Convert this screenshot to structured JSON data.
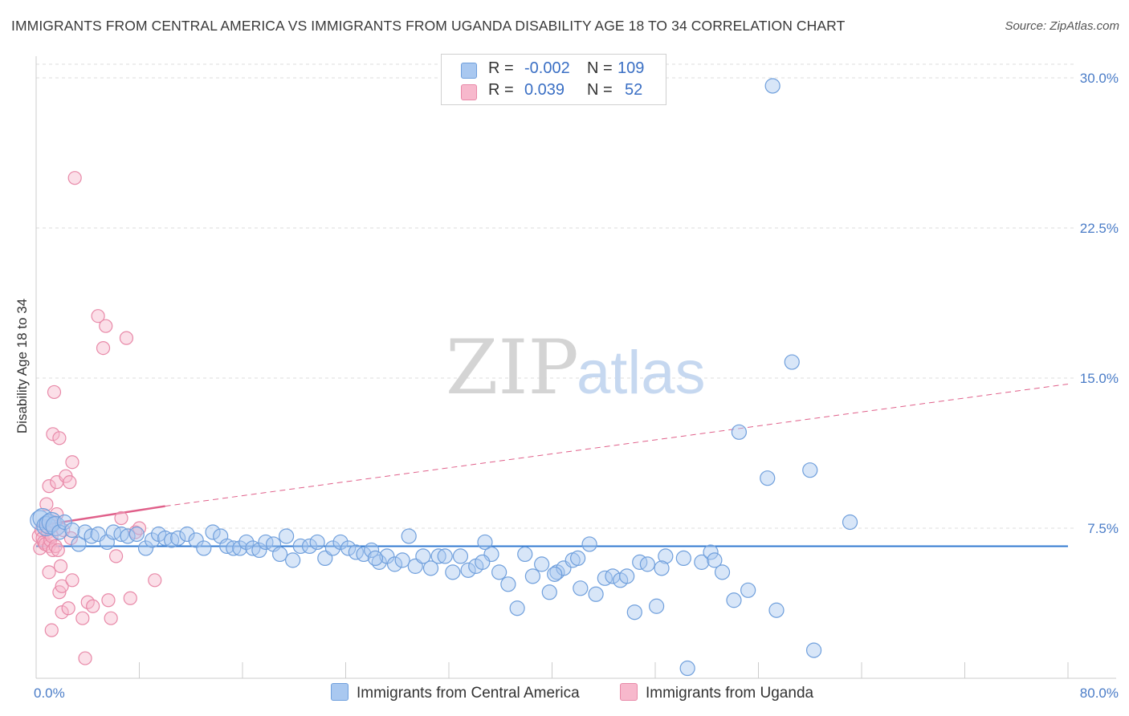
{
  "title": "IMMIGRANTS FROM CENTRAL AMERICA VS IMMIGRANTS FROM UGANDA DISABILITY AGE 18 TO 34 CORRELATION CHART",
  "source": "Source: ZipAtlas.com",
  "watermark": {
    "zip": "ZIP",
    "atlas": "atlas"
  },
  "legend": {
    "rows": [
      {
        "r_label": "R =",
        "r_value": "-0.002",
        "n_label": "N =",
        "n_value": "109"
      },
      {
        "r_label": "R =",
        "r_value": "0.039",
        "n_label": "N =",
        "n_value": "52"
      }
    ]
  },
  "bottom_legend": {
    "series1": "Immigrants from Central America",
    "series2": "Immigrants from Uganda"
  },
  "chart_data": {
    "type": "scatter",
    "title": "IMMIGRANTS FROM CENTRAL AMERICA VS IMMIGRANTS FROM UGANDA DISABILITY AGE 18 TO 34 CORRELATION CHART",
    "xlabel": "",
    "ylabel": "Disability Age 18 to 34",
    "xlim": [
      0,
      80
    ],
    "ylim": [
      0,
      31
    ],
    "x_tick_labels": [
      "0.0%",
      "80.0%"
    ],
    "y_ticks": [
      7.5,
      15.0,
      22.5,
      30.0
    ],
    "y_tick_labels": [
      "7.5%",
      "15.0%",
      "22.5%",
      "30.0%"
    ],
    "colors": {
      "blue_fill": "#a9c8f0",
      "blue_stroke": "#6f9fdc",
      "blue_line": "#2f78d0",
      "pink_fill": "#f7b8cc",
      "pink_stroke": "#e889a8",
      "pink_line": "#e0608a",
      "grid": "#dddddd"
    },
    "series": [
      {
        "name": "Immigrants from Central America",
        "trend": {
          "x": [
            0,
            80
          ],
          "y": [
            6.6,
            6.6
          ],
          "style": "solid"
        },
        "points": [
          [
            0.3,
            7.9
          ],
          [
            0.5,
            8.0
          ],
          [
            0.8,
            7.6
          ],
          [
            1.0,
            7.7
          ],
          [
            1.2,
            7.8
          ],
          [
            1.5,
            7.6
          ],
          [
            1.8,
            7.3
          ],
          [
            2.2,
            7.8
          ],
          [
            2.8,
            7.4
          ],
          [
            3.3,
            6.7
          ],
          [
            3.8,
            7.3
          ],
          [
            4.3,
            7.1
          ],
          [
            4.8,
            7.2
          ],
          [
            5.5,
            6.8
          ],
          [
            6.0,
            7.3
          ],
          [
            6.6,
            7.2
          ],
          [
            7.1,
            7.1
          ],
          [
            7.8,
            7.2
          ],
          [
            8.5,
            6.5
          ],
          [
            9.0,
            6.9
          ],
          [
            9.5,
            7.2
          ],
          [
            10.0,
            7.0
          ],
          [
            10.5,
            6.9
          ],
          [
            11.0,
            7.0
          ],
          [
            11.7,
            7.2
          ],
          [
            12.4,
            6.9
          ],
          [
            13.0,
            6.5
          ],
          [
            13.7,
            7.3
          ],
          [
            14.3,
            7.1
          ],
          [
            14.8,
            6.6
          ],
          [
            15.3,
            6.5
          ],
          [
            15.8,
            6.5
          ],
          [
            16.3,
            6.8
          ],
          [
            16.8,
            6.5
          ],
          [
            17.3,
            6.4
          ],
          [
            17.8,
            6.8
          ],
          [
            18.4,
            6.7
          ],
          [
            18.9,
            6.2
          ],
          [
            19.4,
            7.1
          ],
          [
            19.9,
            5.9
          ],
          [
            20.5,
            6.6
          ],
          [
            21.2,
            6.6
          ],
          [
            21.8,
            6.8
          ],
          [
            22.4,
            6.0
          ],
          [
            23.0,
            6.5
          ],
          [
            23.6,
            6.8
          ],
          [
            24.2,
            6.5
          ],
          [
            24.8,
            6.3
          ],
          [
            25.4,
            6.2
          ],
          [
            26.0,
            6.4
          ],
          [
            26.6,
            5.8
          ],
          [
            27.2,
            6.1
          ],
          [
            27.8,
            5.7
          ],
          [
            28.4,
            5.9
          ],
          [
            28.9,
            7.1
          ],
          [
            29.4,
            5.6
          ],
          [
            30.0,
            6.1
          ],
          [
            30.6,
            5.5
          ],
          [
            31.2,
            6.1
          ],
          [
            31.7,
            6.1
          ],
          [
            32.3,
            5.3
          ],
          [
            32.9,
            6.1
          ],
          [
            33.5,
            5.4
          ],
          [
            34.1,
            5.6
          ],
          [
            34.8,
            6.8
          ],
          [
            35.3,
            6.2
          ],
          [
            35.9,
            5.3
          ],
          [
            36.6,
            4.7
          ],
          [
            37.3,
            3.5
          ],
          [
            37.9,
            6.2
          ],
          [
            38.5,
            5.1
          ],
          [
            39.2,
            5.7
          ],
          [
            39.8,
            4.3
          ],
          [
            40.4,
            5.3
          ],
          [
            40.9,
            5.5
          ],
          [
            41.6,
            5.9
          ],
          [
            42.2,
            4.5
          ],
          [
            42.9,
            6.7
          ],
          [
            43.4,
            4.2
          ],
          [
            44.1,
            5.0
          ],
          [
            44.7,
            5.1
          ],
          [
            45.3,
            4.9
          ],
          [
            45.8,
            5.1
          ],
          [
            46.4,
            3.3
          ],
          [
            46.8,
            5.8
          ],
          [
            47.4,
            5.7
          ],
          [
            48.1,
            3.6
          ],
          [
            48.8,
            6.1
          ],
          [
            50.2,
            6.0
          ],
          [
            51.6,
            5.8
          ],
          [
            52.3,
            6.3
          ],
          [
            53.2,
            5.3
          ],
          [
            54.1,
            3.9
          ],
          [
            54.5,
            12.3
          ],
          [
            55.2,
            4.4
          ],
          [
            56.7,
            10.0
          ],
          [
            57.4,
            3.4
          ],
          [
            57.1,
            29.6
          ],
          [
            58.6,
            15.8
          ],
          [
            60.0,
            10.4
          ],
          [
            60.3,
            1.4
          ],
          [
            63.1,
            7.8
          ],
          [
            50.5,
            0.5
          ],
          [
            26.3,
            6.0
          ],
          [
            34.6,
            5.8
          ],
          [
            40.2,
            5.2
          ],
          [
            42.0,
            6.0
          ],
          [
            48.5,
            5.5
          ],
          [
            52.6,
            5.9
          ]
        ]
      },
      {
        "name": "Immigrants from Uganda",
        "trend": {
          "x": [
            0,
            10.0
          ],
          "y": [
            7.6,
            8.6
          ],
          "style": "solid",
          "extended": {
            "x": [
              10.0,
              80
            ],
            "y": [
              8.6,
              14.7
            ],
            "style": "dashed"
          }
        },
        "points": [
          [
            0.2,
            7.1
          ],
          [
            0.3,
            6.5
          ],
          [
            0.4,
            7.4
          ],
          [
            0.5,
            7.0
          ],
          [
            0.6,
            6.8
          ],
          [
            0.7,
            6.7
          ],
          [
            0.8,
            7.6
          ],
          [
            0.9,
            7.3
          ],
          [
            1.0,
            6.6
          ],
          [
            1.1,
            6.9
          ],
          [
            1.2,
            7.1
          ],
          [
            1.3,
            6.4
          ],
          [
            1.4,
            7.8
          ],
          [
            1.5,
            6.6
          ],
          [
            1.6,
            8.2
          ],
          [
            0.8,
            8.7
          ],
          [
            1.0,
            9.6
          ],
          [
            1.0,
            5.3
          ],
          [
            1.2,
            2.4
          ],
          [
            1.3,
            12.2
          ],
          [
            1.4,
            14.3
          ],
          [
            1.6,
            9.8
          ],
          [
            1.7,
            6.4
          ],
          [
            1.8,
            4.3
          ],
          [
            1.8,
            12.0
          ],
          [
            1.9,
            5.6
          ],
          [
            2.0,
            3.3
          ],
          [
            2.0,
            4.6
          ],
          [
            2.1,
            7.4
          ],
          [
            2.3,
            10.1
          ],
          [
            2.5,
            3.5
          ],
          [
            2.6,
            9.8
          ],
          [
            2.7,
            7.0
          ],
          [
            2.8,
            4.9
          ],
          [
            2.8,
            10.8
          ],
          [
            3.0,
            25.0
          ],
          [
            3.6,
            3.0
          ],
          [
            3.8,
            1.0
          ],
          [
            4.0,
            3.8
          ],
          [
            4.4,
            3.6
          ],
          [
            4.8,
            18.1
          ],
          [
            5.2,
            16.5
          ],
          [
            5.4,
            17.6
          ],
          [
            5.6,
            3.9
          ],
          [
            5.8,
            3.0
          ],
          [
            6.2,
            6.1
          ],
          [
            6.6,
            8.0
          ],
          [
            7.0,
            17.0
          ],
          [
            7.3,
            4.0
          ],
          [
            7.7,
            7.3
          ],
          [
            8.0,
            7.5
          ],
          [
            9.2,
            4.9
          ]
        ]
      }
    ]
  }
}
